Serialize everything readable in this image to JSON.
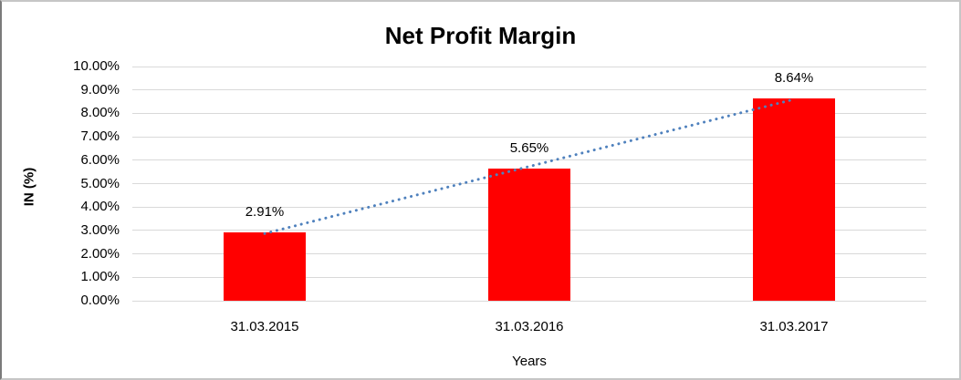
{
  "chart_data": {
    "type": "bar",
    "title": "Net Profit Margin",
    "categories": [
      "31.03.2015",
      "31.03.2016",
      "31.03.2017"
    ],
    "values": [
      2.91,
      5.65,
      8.64
    ],
    "data_labels": [
      "2.91%",
      "5.65%",
      "8.64%"
    ],
    "xlabel": "Years",
    "ylabel": "IN (%)",
    "ylim": [
      0,
      10
    ],
    "ytick_values": [
      0,
      1,
      2,
      3,
      4,
      5,
      6,
      7,
      8,
      9,
      10
    ],
    "ytick_labels": [
      "0.00%",
      "1.00%",
      "2.00%",
      "3.00%",
      "4.00%",
      "5.00%",
      "6.00%",
      "7.00%",
      "8.00%",
      "9.00%",
      "10.00%"
    ],
    "grid": true,
    "legend": "none",
    "bar_color": "#ff0000",
    "gridline_color": "#d9d9d9",
    "trendline": {
      "type": "linear",
      "style": "dotted",
      "color": "#4f81bd"
    },
    "background": "#ffffff"
  }
}
